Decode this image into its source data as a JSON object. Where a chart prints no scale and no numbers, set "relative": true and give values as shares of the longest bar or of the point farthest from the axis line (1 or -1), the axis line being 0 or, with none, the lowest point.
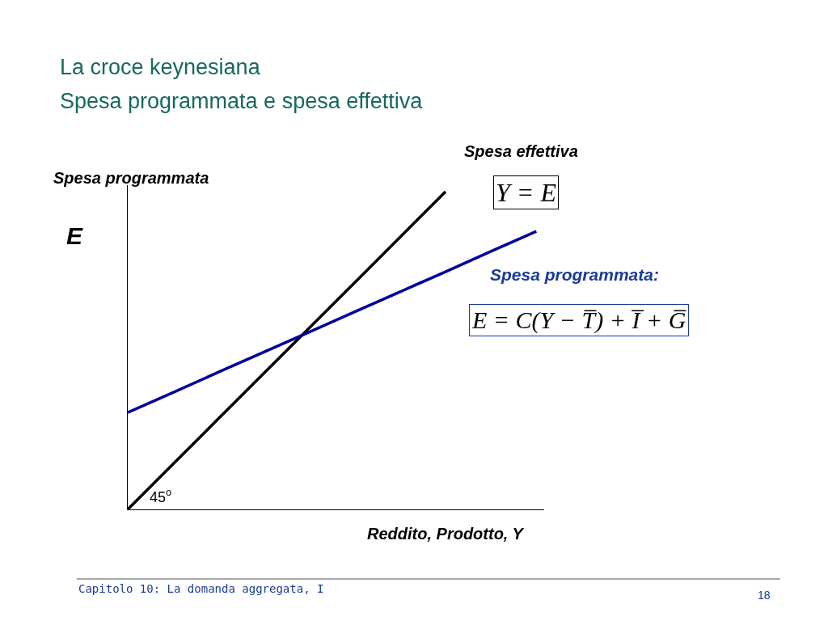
{
  "chart_data": {
    "type": "line",
    "title": "La croce keynesiana",
    "subtitle": "Spesa programmata e spesa effettiva",
    "xlabel": "Reddito, Prodotto, Y",
    "ylabel": "E",
    "relative": true,
    "marker": "none",
    "line_style": "solid",
    "categories": [
      null,
      null,
      null,
      null,
      null,
      null,
      null,
      null,
      null,
      null
    ],
    "series": [
      {
        "color": "#000000",
        "values": [
          0,
          0.143,
          0.286,
          0.429,
          0.571,
          0.714,
          0.857,
          1,
          null,
          null
        ]
      },
      {
        "color": "#000099",
        "values": [
          0.305,
          0.368,
          0.432,
          0.495,
          0.558,
          0.622,
          0.685,
          0.748,
          0.812,
          0.875
        ]
      }
    ],
    "annotations": [
      "Spesa programmata",
      "Spesa effettiva",
      "Y = E",
      "Spesa programmata:",
      "E = C(Y − T̅) + I̅ + G̅",
      "45$^{o}$",
      "Capitolo 10: La domanda aggregata, I",
      "18"
    ]
  }
}
